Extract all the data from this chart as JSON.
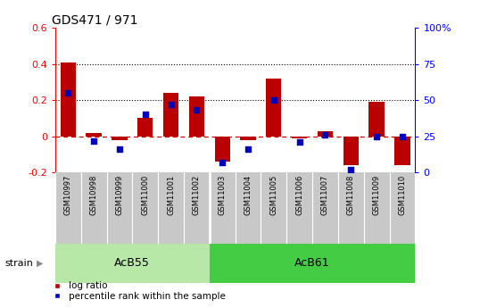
{
  "title": "GDS471 / 971",
  "samples": [
    "GSM10997",
    "GSM10998",
    "GSM10999",
    "GSM11000",
    "GSM11001",
    "GSM11002",
    "GSM11003",
    "GSM11004",
    "GSM11005",
    "GSM11006",
    "GSM11007",
    "GSM11008",
    "GSM11009",
    "GSM11010"
  ],
  "log_ratio": [
    0.41,
    0.02,
    -0.02,
    0.1,
    0.24,
    0.22,
    -0.14,
    -0.02,
    0.32,
    -0.01,
    0.03,
    -0.16,
    0.19,
    -0.16
  ],
  "percentile": [
    55,
    22,
    16,
    40,
    47,
    43,
    7,
    16,
    50,
    21,
    26,
    2,
    25,
    25
  ],
  "groups": [
    {
      "label": "AcB55",
      "start": 0,
      "end": 5,
      "color": "#b0e8a0"
    },
    {
      "label": "AcB61",
      "start": 6,
      "end": 13,
      "color": "#33cc33"
    }
  ],
  "bar_color": "#bb0000",
  "dot_color": "#0000bb",
  "ylim_left": [
    -0.2,
    0.6
  ],
  "ylim_right": [
    0,
    100
  ],
  "right_yticks": [
    0,
    25,
    50,
    75,
    100
  ],
  "right_yticklabels": [
    "0",
    "25",
    "50",
    "75",
    "100%"
  ],
  "left_yticks": [
    -0.2,
    0.0,
    0.2,
    0.4,
    0.6
  ],
  "left_yticklabels": [
    "-0.2",
    "0",
    "0.2",
    "0.4",
    "0.6"
  ],
  "bg_color": "#ffffff",
  "strain_label": "strain",
  "legend_log_ratio": "log ratio",
  "legend_percentile": "percentile rank within the sample",
  "label_bg": "#c8c8c8",
  "group1_color": "#b8e8a8",
  "group2_color": "#44cc44"
}
